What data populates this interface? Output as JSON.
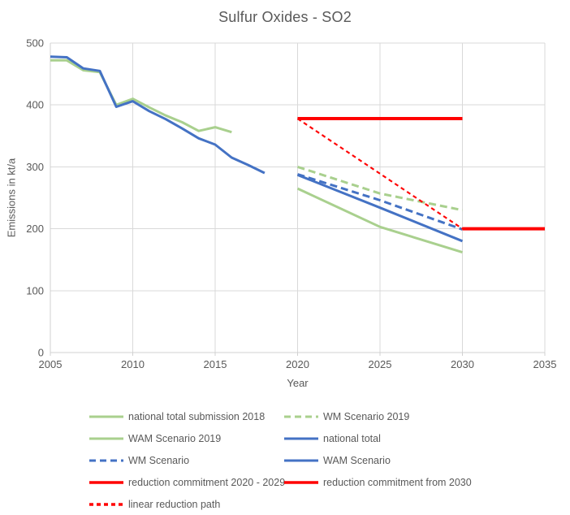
{
  "title": "Sulfur Oxides - SO2",
  "colors": {
    "green": "#A9D08E",
    "blue": "#4472C4",
    "red": "#FF0000",
    "grid": "#D9D9D9",
    "axis": "#D0D0D0",
    "text": "#595959"
  },
  "chart_data": {
    "type": "line",
    "title": "Sulfur Oxides - SO2",
    "xlabel": "Year",
    "ylabel": "Emissions in kt/a",
    "xlim": [
      2005,
      2035
    ],
    "ylim": [
      0,
      500
    ],
    "xticks": [
      2005,
      2010,
      2015,
      2020,
      2025,
      2030,
      2035
    ],
    "yticks": [
      0,
      100,
      200,
      300,
      400,
      500
    ],
    "grid": true,
    "legend_position": "bottom",
    "series": [
      {
        "name": "national total submission 2018",
        "color": "green",
        "dash": "solid",
        "width": 3,
        "x": [
          2005,
          2006,
          2007,
          2008,
          2009,
          2010,
          2011,
          2012,
          2013,
          2014,
          2015,
          2016
        ],
        "y": [
          472,
          472,
          456,
          453,
          400,
          410,
          396,
          383,
          372,
          358,
          364,
          356
        ]
      },
      {
        "name": "WAM Scenario 2019",
        "color": "green",
        "dash": "solid",
        "width": 3,
        "x": [
          2020,
          2025,
          2030
        ],
        "y": [
          265,
          203,
          162
        ]
      },
      {
        "name": "WM Scenario 2019",
        "color": "green",
        "dash": "dashed",
        "width": 3,
        "x": [
          2020,
          2025,
          2030
        ],
        "y": [
          300,
          257,
          230
        ]
      },
      {
        "name": "national total",
        "color": "blue",
        "dash": "solid",
        "width": 3,
        "x": [
          2005,
          2006,
          2007,
          2008,
          2009,
          2010,
          2011,
          2012,
          2013,
          2014,
          2015,
          2016,
          2017,
          2018
        ],
        "y": [
          478,
          477,
          459,
          455,
          397,
          406,
          390,
          377,
          362,
          346,
          336,
          315,
          303,
          290
        ]
      },
      {
        "name": "WAM Scenario",
        "color": "blue",
        "dash": "solid",
        "width": 3,
        "x": [
          2020,
          2025,
          2030
        ],
        "y": [
          287,
          234,
          180
        ]
      },
      {
        "name": "WM Scenario",
        "color": "blue",
        "dash": "dashed",
        "width": 3,
        "x": [
          2020,
          2025,
          2030
        ],
        "y": [
          288,
          246,
          199
        ]
      },
      {
        "name": "reduction commitment 2020 - 2029",
        "color": "red",
        "dash": "solid",
        "width": 4,
        "x": [
          2020,
          2030
        ],
        "y": [
          378,
          378
        ]
      },
      {
        "name": "reduction commitment from 2030",
        "color": "red",
        "dash": "solid",
        "width": 4,
        "x": [
          2030,
          2035
        ],
        "y": [
          200,
          200
        ]
      },
      {
        "name": "linear reduction path",
        "color": "red",
        "dash": "dashed",
        "width": 2.2,
        "x": [
          2020,
          2030
        ],
        "y": [
          378,
          200
        ]
      }
    ]
  },
  "legend": {
    "items": [
      {
        "label": "national total submission 2018",
        "color": "green",
        "dash": "solid"
      },
      {
        "label": "WM Scenario 2019",
        "color": "green",
        "dash": "dashed"
      },
      {
        "label": "WAM Scenario 2019",
        "color": "green",
        "dash": "solid"
      },
      {
        "label": "national total",
        "color": "blue",
        "dash": "solid"
      },
      {
        "label": "WM Scenario",
        "color": "blue",
        "dash": "dashed"
      },
      {
        "label": "WAM Scenario",
        "color": "blue",
        "dash": "solid"
      },
      {
        "label": "reduction commitment 2020 - 2029",
        "color": "red",
        "dash": "solid"
      },
      {
        "label": "reduction commitment from 2030",
        "color": "red",
        "dash": "solid"
      },
      {
        "label": "linear reduction path",
        "color": "red",
        "dash": "dashed"
      }
    ]
  }
}
